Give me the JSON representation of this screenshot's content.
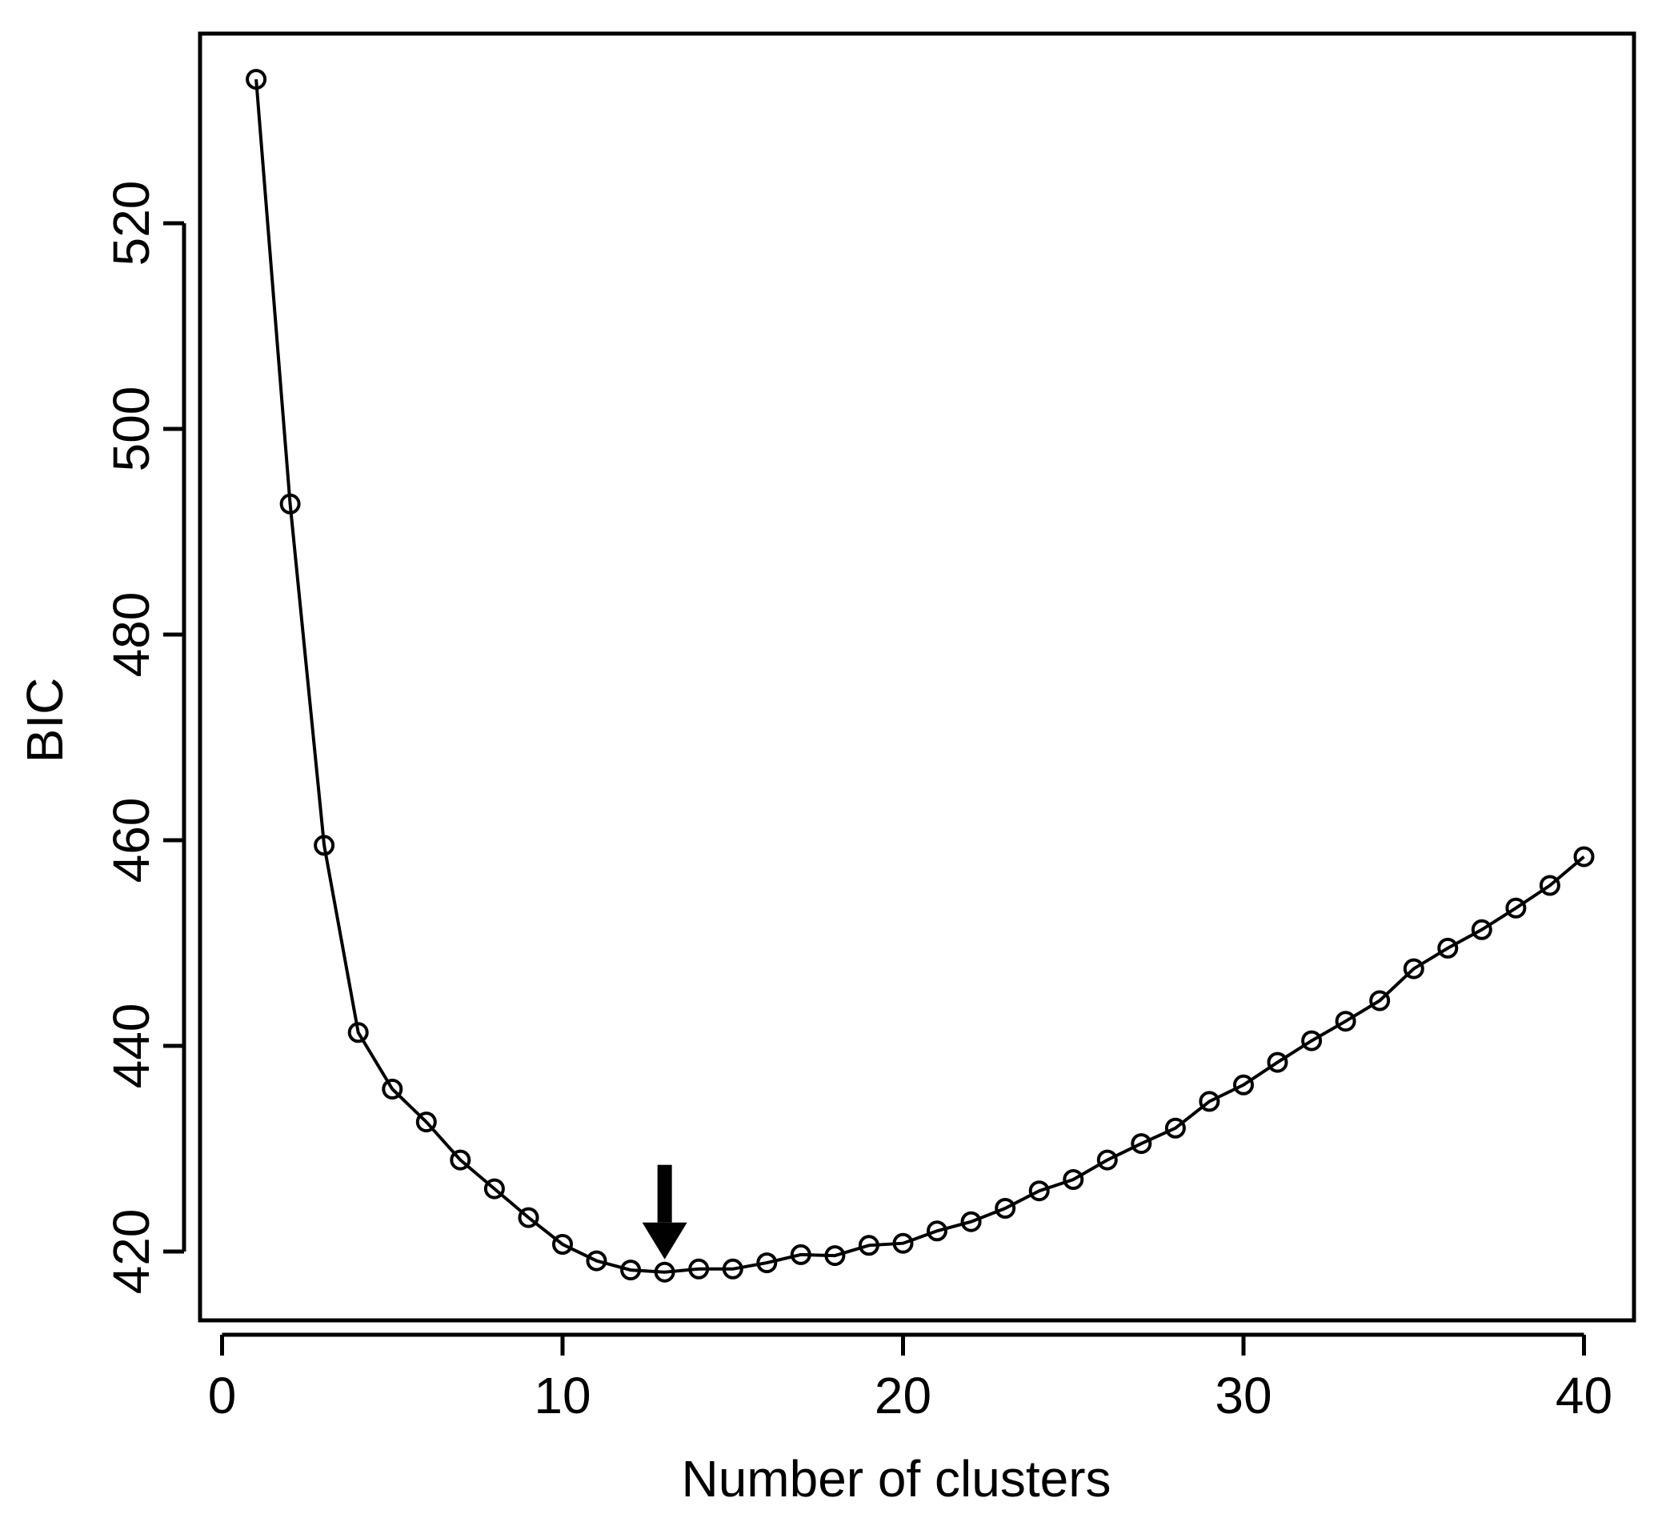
{
  "chart_data": {
    "type": "line",
    "xlabel": "Number of clusters",
    "ylabel": "BIC",
    "xlim": [
      0,
      40
    ],
    "ylim": [
      416,
      535
    ],
    "x_ticks": [
      0,
      10,
      20,
      30,
      40
    ],
    "y_ticks": [
      420,
      440,
      460,
      480,
      500,
      520
    ],
    "grid": false,
    "legend": "none",
    "annotation": {
      "type": "arrow-down",
      "x": 13,
      "y": 418
    },
    "series": [
      {
        "marker": "open-circle",
        "x": [
          1,
          2,
          3,
          4,
          5,
          6,
          7,
          8,
          9,
          10,
          11,
          12,
          13,
          14,
          15,
          16,
          17,
          18,
          19,
          20,
          21,
          22,
          23,
          24,
          25,
          26,
          27,
          28,
          29,
          30,
          31,
          32,
          33,
          34,
          35,
          36,
          37,
          38,
          39,
          40
        ],
        "values": [
          534,
          492.7,
          459.5,
          441.3,
          435.8,
          432.6,
          428.9,
          426.1,
          423.3,
          420.7,
          419.1,
          418.2,
          418.0,
          418.3,
          418.3,
          418.9,
          419.7,
          419.6,
          420.6,
          420.8,
          422.0,
          422.9,
          424.2,
          425.9,
          427.0,
          428.9,
          430.5,
          432.0,
          434.6,
          436.2,
          438.4,
          440.5,
          442.4,
          444.4,
          447.5,
          449.5,
          451.3,
          453.4,
          455.6,
          458.4
        ]
      }
    ]
  }
}
